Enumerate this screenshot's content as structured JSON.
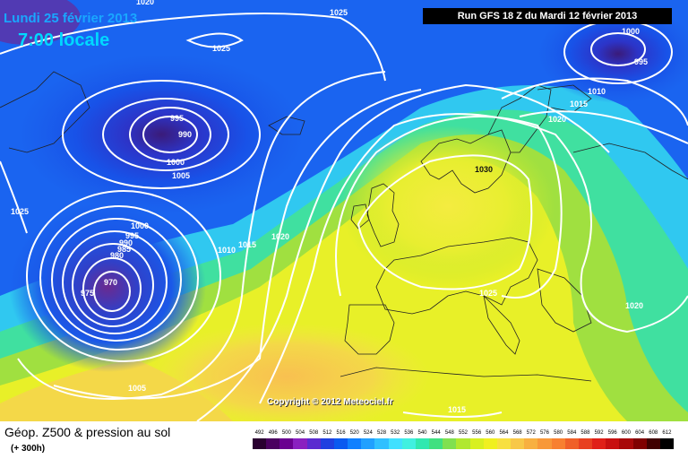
{
  "header": {
    "date": "Lundi 25 février 2013",
    "time": "7:00 locale",
    "run": "Run GFS 18 Z du Mardi 12 février 2013"
  },
  "copyright": "Copyright © 2012 Meteociel.fr",
  "footer": {
    "title": "Géop. Z500 & pression au sol",
    "subtitle": "(+ 300h)"
  },
  "isobar_labels": [
    "1020",
    "1025",
    "1025",
    "995",
    "990",
    "1000",
    "1005",
    "1025",
    "1000",
    "995",
    "990",
    "985",
    "980",
    "975",
    "970",
    "1010",
    "1015",
    "1020",
    "1005",
    "1030",
    "1025",
    "1015",
    "1000",
    "995",
    "1010",
    "1015",
    "1020",
    "1020"
  ],
  "legend": {
    "values": [
      "492",
      "496",
      "500",
      "504",
      "508",
      "512",
      "516",
      "520",
      "524",
      "528",
      "532",
      "536",
      "540",
      "544",
      "548",
      "552",
      "556",
      "560",
      "564",
      "568",
      "572",
      "576",
      "580",
      "584",
      "588",
      "592",
      "596",
      "600",
      "604",
      "608",
      "612"
    ],
    "colors": [
      "#2a0030",
      "#4b0060",
      "#6a0090",
      "#8a20c0",
      "#5a2bd0",
      "#2040e0",
      "#0a5af0",
      "#1080ff",
      "#20a0ff",
      "#30c0ff",
      "#40e0ff",
      "#40f0e0",
      "#30e8b0",
      "#40e080",
      "#80e050",
      "#b0e830",
      "#d8f020",
      "#f0f020",
      "#f8e040",
      "#f8c848",
      "#f8b040",
      "#f89838",
      "#f88030",
      "#f06028",
      "#e84020",
      "#e02018",
      "#c81010",
      "#a80808",
      "#800000",
      "#400000",
      "#000000"
    ]
  }
}
